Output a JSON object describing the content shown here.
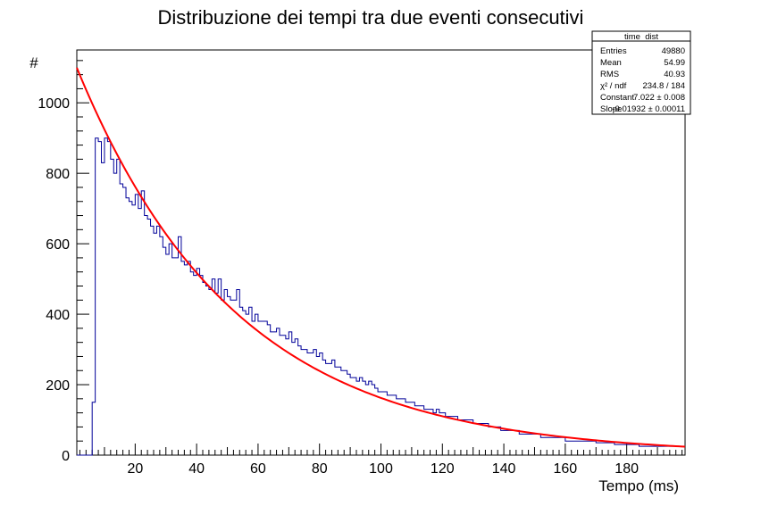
{
  "chart_data": {
    "type": "histogram",
    "title": "Distribuzione dei tempi tra due eventi consecutivi",
    "xlabel": "Tempo (ms)",
    "ylabel": "#",
    "xlim": [
      1,
      199
    ],
    "ylim": [
      0,
      1150
    ],
    "x_ticks": [
      20,
      40,
      60,
      80,
      100,
      120,
      140,
      160,
      180
    ],
    "y_ticks": [
      0,
      200,
      400,
      600,
      800,
      1000
    ],
    "bin_width": 1,
    "bins_start": 1,
    "bin_values": [
      0,
      0,
      0,
      0,
      0,
      150,
      900,
      890,
      830,
      900,
      890,
      840,
      800,
      840,
      770,
      760,
      730,
      720,
      710,
      740,
      700,
      750,
      680,
      670,
      650,
      630,
      650,
      620,
      590,
      570,
      600,
      560,
      560,
      620,
      550,
      540,
      550,
      520,
      510,
      530,
      510,
      490,
      480,
      470,
      500,
      460,
      500,
      440,
      470,
      450,
      440,
      440,
      470,
      420,
      410,
      400,
      420,
      380,
      400,
      380,
      380,
      380,
      370,
      350,
      350,
      360,
      340,
      340,
      330,
      350,
      320,
      330,
      310,
      300,
      300,
      290,
      290,
      300,
      280,
      290,
      270,
      260,
      260,
      270,
      250,
      250,
      240,
      240,
      230,
      220,
      220,
      210,
      220,
      210,
      200,
      210,
      200,
      190,
      180,
      180,
      180,
      170,
      170,
      170,
      160,
      160,
      160,
      150,
      150,
      150,
      140,
      140,
      140,
      130,
      130,
      130,
      120,
      130,
      120,
      120,
      110,
      110,
      110,
      110,
      100,
      100,
      100,
      100,
      100,
      90,
      90,
      90,
      90,
      90,
      80,
      80,
      80,
      80,
      70,
      70,
      70,
      70,
      70,
      70,
      60,
      60,
      60,
      60,
      60,
      60,
      60,
      50,
      50,
      50,
      50,
      50,
      50,
      50,
      50,
      40,
      40,
      40,
      40,
      40,
      40,
      40,
      40,
      40,
      40,
      35,
      35,
      35,
      35,
      35,
      35,
      30,
      30,
      30,
      30,
      30,
      30,
      30,
      30,
      25,
      25,
      25,
      25,
      25,
      25,
      25,
      25,
      25,
      25,
      25,
      25,
      25,
      25,
      25
    ],
    "fit": {
      "function": "expo",
      "constant": 7.022,
      "slope": -0.01932,
      "color": "#ff0000"
    },
    "histogram_color": "#000099",
    "stats_box": {
      "name": "time_dist",
      "rows": [
        {
          "label": "Entries",
          "value": "49880"
        },
        {
          "label": "Mean",
          "value": "54.99"
        },
        {
          "label": "RMS",
          "value": "40.93"
        },
        {
          "label": "χ² / ndf",
          "value": "234.8 / 184"
        },
        {
          "label": "Constant",
          "value": "7.022  ± 0.008"
        },
        {
          "label": "Slope",
          "value": "-0.01932  ± 0.00011"
        }
      ]
    }
  }
}
